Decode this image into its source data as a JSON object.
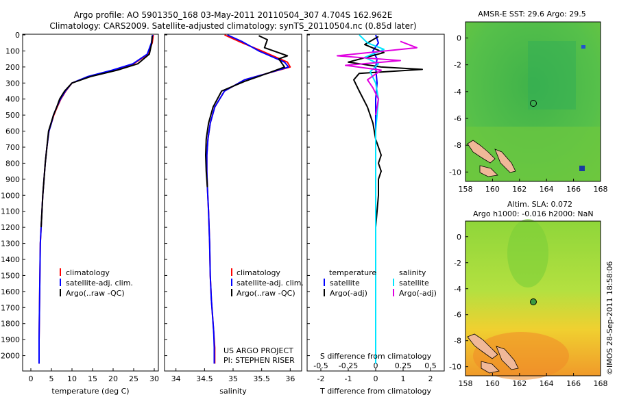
{
  "header": {
    "title_line1": "Argo profile: AO 5901350_168 03-May-2011 20110504_307 4.704S 162.962E",
    "title_line2": "Climatology: CARS2009. Satellite-adjusted climatology: synTS_20110504.nc (0.85d later)"
  },
  "panels": {
    "temperature": {
      "xlabel": "temperature (deg C)",
      "xticks": [
        "0",
        "5",
        "10",
        "15",
        "20",
        "25",
        "30"
      ],
      "legend": [
        "climatology",
        "satellite-adj. clim.",
        "Argo(..raw -QC)"
      ]
    },
    "salinity": {
      "xlabel": "salinity",
      "xticks": [
        "34",
        "34.5",
        "35",
        "35.5",
        "36"
      ],
      "legend": [
        "climatology",
        "satellite-adj. clim.",
        "Argo(..raw -QC)"
      ],
      "note_line1": "US ARGO PROJECT",
      "note_line2": "PI: STEPHEN RISER"
    },
    "difference": {
      "xlabel_top": "S difference from climatology",
      "xlabel_bottom": "T difference from climatology",
      "top_ticks": [
        "-0.5",
        "-0.25",
        "0",
        "0.25",
        "0.5"
      ],
      "bottom_ticks": [
        "-2",
        "-1",
        "0",
        "1",
        "2"
      ],
      "legend_temp_title": "temperature",
      "legend_sal_title": "salinity",
      "legend_temp": [
        "satellite",
        "Argo(-adj)"
      ],
      "legend_sal": [
        "satellite",
        "Argo(-adj)"
      ]
    },
    "depth_ticks": [
      "0",
      "100",
      "200",
      "300",
      "400",
      "500",
      "600",
      "700",
      "800",
      "900",
      "1000",
      "1100",
      "1200",
      "1300",
      "1400",
      "1500",
      "1600",
      "1700",
      "1800",
      "1900",
      "2000"
    ],
    "map_sst": {
      "title": "AMSR-E SST: 29.6 Argo: 29.5",
      "lon_ticks": [
        "158",
        "160",
        "162",
        "164",
        "166",
        "168"
      ],
      "lat_ticks": [
        "0",
        "-2",
        "-4",
        "-6",
        "-8",
        "-10"
      ]
    },
    "map_sla": {
      "title_line1": "Altim. SLA: 0.072",
      "title_line2": "Argo h1000: -0.016 h2000: NaN",
      "lon_ticks": [
        "158",
        "160",
        "162",
        "164",
        "166",
        "168"
      ],
      "lat_ticks": [
        "0",
        "-2",
        "-4",
        "-6",
        "-8",
        "-10"
      ]
    },
    "stamp": "©IMOS 28-Sep-2011 18:58:06"
  },
  "colors": {
    "climatology": "#ff0000",
    "satellite": "#0000ff",
    "argo": "#000000",
    "sal_satellite": "#00e5ff",
    "sal_argo": "#e000e0"
  },
  "chart_data": [
    {
      "type": "line",
      "xlabel": "temperature (deg C)",
      "ylabel": "",
      "xlim": [
        -2,
        31
      ],
      "ylim": [
        2100,
        0
      ],
      "series": [
        {
          "name": "climatology",
          "x": [
            29.8,
            29.5,
            28.5,
            25,
            20,
            14,
            10,
            8.5,
            7.3,
            6.4,
            5.6,
            5.0,
            4.4,
            3.9,
            3.5,
            3.2,
            2.9,
            2.7,
            2.5,
            2.3,
            2.2,
            2.1,
            2.0,
            2.0
          ],
          "y": [
            0,
            50,
            120,
            180,
            220,
            260,
            300,
            350,
            400,
            450,
            500,
            550,
            600,
            700,
            800,
            900,
            1000,
            1100,
            1200,
            1300,
            1500,
            1700,
            1900,
            2050
          ]
        },
        {
          "name": "satellite-adj. clim.",
          "x": [
            29.6,
            29.3,
            28.3,
            24.8,
            19.8,
            13.8,
            10,
            8.4,
            7.2,
            6.3,
            5.5,
            5.0,
            4.4,
            3.9,
            3.5,
            3.2,
            2.9,
            2.7,
            2.5,
            2.3,
            2.2,
            2.1,
            2.0,
            2.0
          ],
          "y": [
            0,
            50,
            120,
            180,
            220,
            260,
            300,
            350,
            400,
            450,
            500,
            550,
            600,
            700,
            800,
            900,
            1000,
            1100,
            1200,
            1300,
            1500,
            1700,
            1900,
            2050
          ]
        },
        {
          "name": "Argo(..raw -QC)",
          "x": [
            29.5,
            29.4,
            28.8,
            26,
            21,
            14.5,
            10,
            8.2,
            7.0,
            6.3,
            5.5,
            4.9,
            4.3,
            3.9,
            3.5,
            3.2,
            2.9,
            2.7,
            2.5
          ],
          "y": [
            5,
            50,
            120,
            180,
            220,
            260,
            300,
            350,
            400,
            450,
            500,
            550,
            600,
            700,
            800,
            900,
            1000,
            1100,
            1200
          ]
        }
      ]
    },
    {
      "type": "line",
      "xlabel": "salinity",
      "ylabel": "",
      "xlim": [
        33.8,
        36.2
      ],
      "ylim": [
        2100,
        0
      ],
      "series": [
        {
          "name": "climatology",
          "x": [
            34.85,
            35.1,
            35.5,
            35.95,
            36.0,
            35.6,
            35.2,
            34.85,
            34.68,
            34.6,
            34.56,
            34.54,
            34.54,
            34.55,
            34.57,
            34.59,
            34.6,
            34.62,
            34.64,
            34.66,
            34.68,
            34.68
          ],
          "y": [
            0,
            40,
            100,
            170,
            200,
            240,
            280,
            350,
            450,
            550,
            650,
            750,
            850,
            950,
            1100,
            1300,
            1500,
            1650,
            1750,
            1850,
            1950,
            2050
          ]
        },
        {
          "name": "satellite-adj. clim.",
          "x": [
            34.9,
            35.15,
            35.45,
            35.9,
            35.97,
            35.6,
            35.2,
            34.85,
            34.68,
            34.6,
            34.56,
            34.54,
            34.54,
            34.55,
            34.57,
            34.59,
            34.6,
            34.62,
            34.64,
            34.66,
            34.67,
            34.67
          ],
          "y": [
            0,
            40,
            100,
            170,
            200,
            240,
            280,
            350,
            450,
            550,
            650,
            750,
            850,
            950,
            1100,
            1300,
            1500,
            1650,
            1750,
            1850,
            1950,
            2050
          ]
        },
        {
          "name": "Argo(..raw -QC)",
          "x": [
            35.45,
            35.6,
            35.55,
            35.95,
            35.8,
            35.9,
            35.6,
            35.2,
            34.8,
            34.65,
            34.57,
            34.53,
            34.52,
            34.53,
            34.55
          ],
          "y": [
            5,
            30,
            80,
            130,
            150,
            200,
            240,
            290,
            350,
            450,
            550,
            650,
            750,
            850,
            950
          ]
        }
      ]
    },
    {
      "type": "line",
      "xlabel": "T difference from climatology",
      "ylabel": "",
      "xlim": [
        -2.5,
        2.5
      ],
      "ylim": [
        2100,
        0
      ],
      "series": [
        {
          "name": "temperature satellite",
          "x": [
            0,
            0.1,
            -0.1,
            0.05,
            0,
            0.05,
            0,
            0,
            0,
            0
          ],
          "y": [
            0,
            50,
            100,
            150,
            200,
            300,
            400,
            600,
            1000,
            2050
          ]
        },
        {
          "name": "temperature Argo(-adj)",
          "x": [
            0.1,
            -0.4,
            0.3,
            -1.0,
            0.2,
            1.7,
            -0.6,
            -0.8,
            -0.6,
            -0.3,
            -0.1,
            0,
            0.2,
            0.1,
            0.2,
            0.1,
            0.1,
            0
          ],
          "y": [
            10,
            60,
            110,
            170,
            200,
            215,
            240,
            280,
            350,
            450,
            550,
            650,
            750,
            800,
            850,
            900,
            1000,
            1200
          ]
        },
        {
          "name": "salinity satellite",
          "x": [
            -0.6,
            -0.3,
            0.3,
            -0.4,
            0.1,
            -0.2,
            0,
            0.1,
            0,
            0,
            0
          ],
          "y": [
            0,
            50,
            90,
            140,
            180,
            230,
            300,
            400,
            600,
            1000,
            2050
          ]
        },
        {
          "name": "salinity Argo(-adj)",
          "x": [
            0.9,
            1.5,
            -1.4,
            0.9,
            -1.1,
            0.2,
            -0.3,
            -0.1,
            0.1,
            0
          ],
          "y": [
            40,
            80,
            130,
            160,
            190,
            220,
            280,
            330,
            400,
            500
          ]
        }
      ]
    }
  ]
}
